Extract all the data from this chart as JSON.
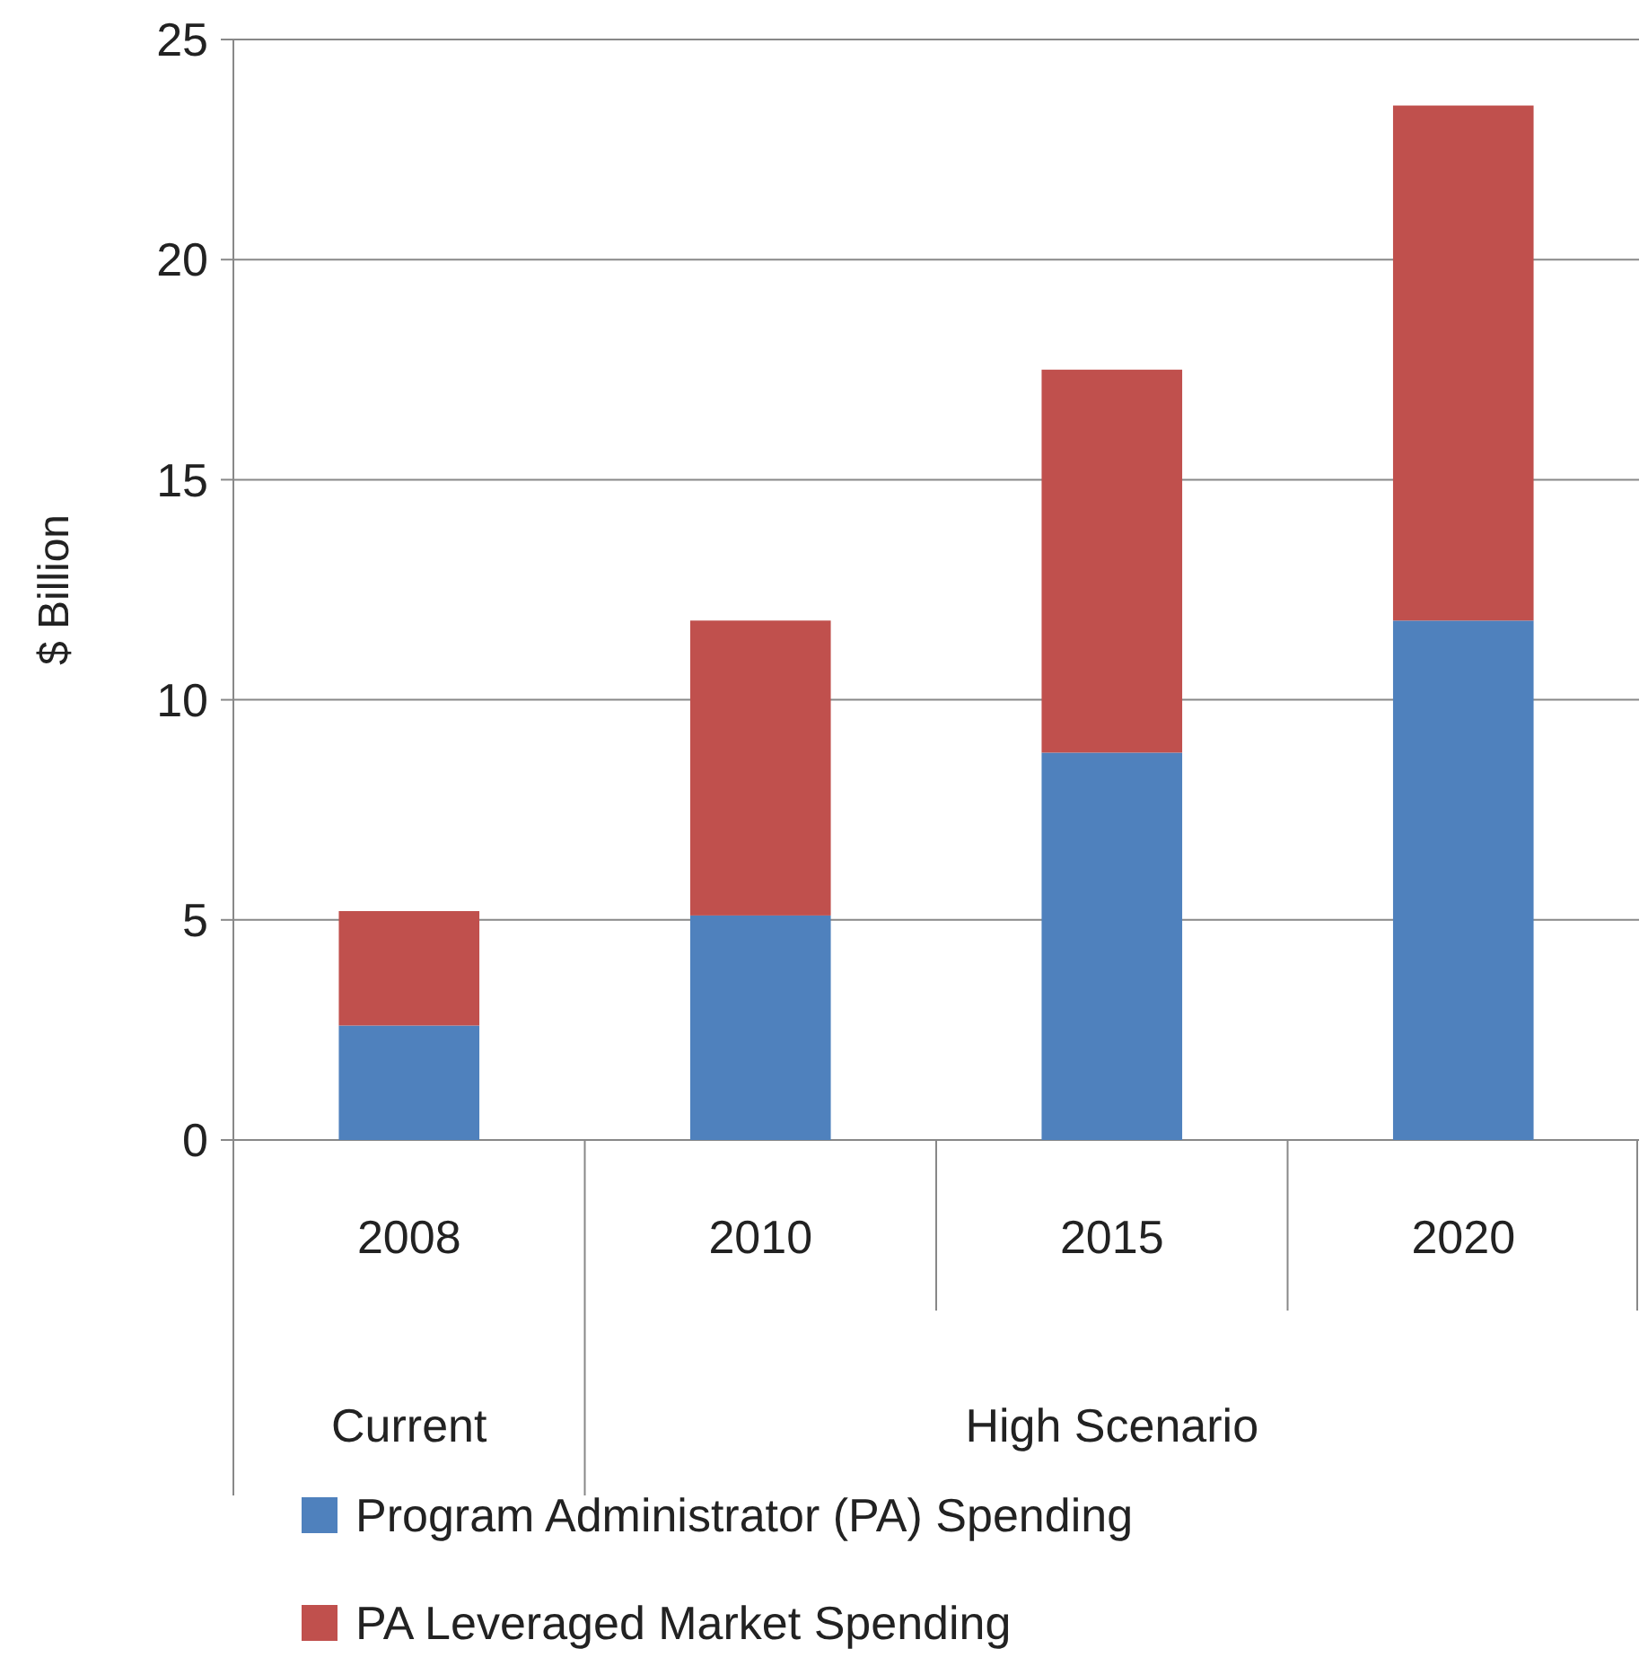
{
  "chart_data": {
    "type": "bar",
    "stacked": true,
    "ylabel": "$ Billion",
    "categories": [
      "2008",
      "2010",
      "2015",
      "2020"
    ],
    "series": [
      {
        "name": "Program Administrator (PA) Spending",
        "color": "#4f81bd",
        "values": [
          2.6,
          5.1,
          8.8,
          11.8
        ]
      },
      {
        "name": "PA Leveraged Market Spending",
        "color": "#c0504d",
        "values": [
          2.6,
          6.7,
          8.7,
          11.7
        ]
      }
    ],
    "ylim": [
      0,
      25
    ],
    "yticks": [
      0,
      5,
      10,
      15,
      20,
      25
    ],
    "grid": "y",
    "legend": "bottom",
    "annotations": [
      "Current",
      "High Scenario"
    ]
  }
}
